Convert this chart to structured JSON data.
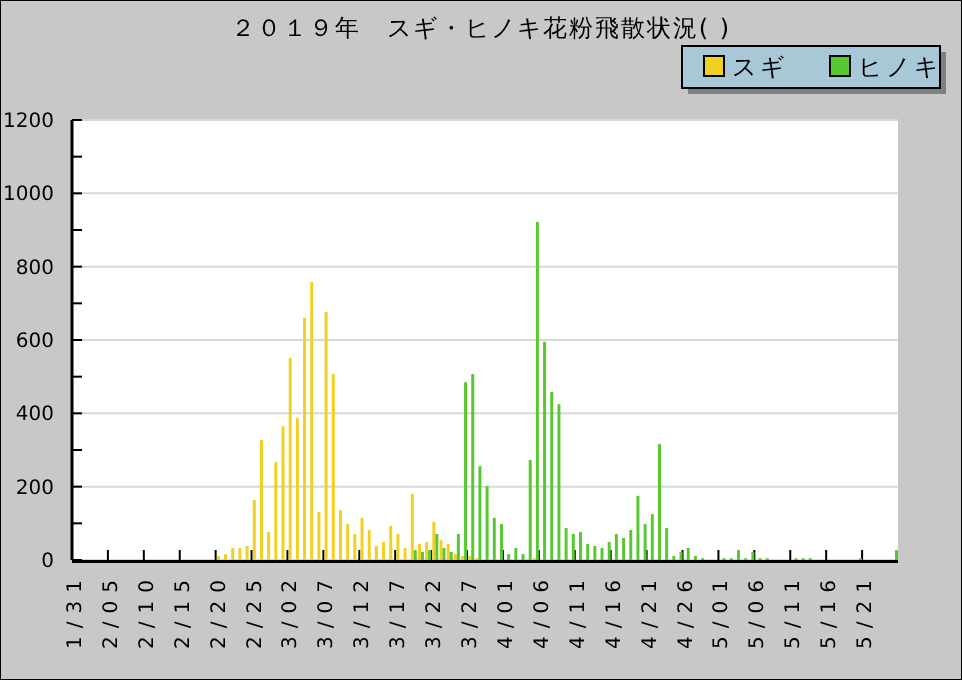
{
  "chart_data": {
    "type": "bar",
    "title": "２０１９年　スギ・ヒノキ花粉飛散状況( )",
    "categories": [
      "1/31",
      null,
      null,
      null,
      null,
      "2/05",
      null,
      null,
      null,
      null,
      "2/10",
      null,
      null,
      null,
      null,
      "2/15",
      null,
      null,
      null,
      null,
      "2/20",
      null,
      null,
      null,
      null,
      "2/25",
      null,
      null,
      null,
      null,
      "3/02",
      null,
      null,
      null,
      null,
      "3/07",
      null,
      null,
      null,
      null,
      "3/12",
      null,
      null,
      null,
      null,
      "3/17",
      null,
      null,
      null,
      null,
      "3/22",
      null,
      null,
      null,
      null,
      "3/27",
      null,
      null,
      null,
      null,
      "4/01",
      null,
      null,
      null,
      null,
      "4/06",
      null,
      null,
      null,
      null,
      "4/11",
      null,
      null,
      null,
      null,
      "4/16",
      null,
      null,
      null,
      null,
      "4/21",
      null,
      null,
      null,
      null,
      "4/26",
      null,
      null,
      null,
      null,
      "5/01",
      null,
      null,
      null,
      null,
      "5/06",
      null,
      null,
      null,
      null,
      "5/11",
      null,
      null,
      null,
      null,
      "5/16",
      null,
      null,
      null,
      null,
      "5/21",
      null,
      null,
      null,
      null
    ],
    "series": [
      {
        "name": "スギ",
        "color": "#f0d020",
        "values": [
          0,
          0,
          0,
          0,
          0,
          0,
          0,
          0,
          0,
          0,
          0,
          0,
          0,
          0,
          0,
          0,
          0,
          0,
          0,
          0,
          11,
          16,
          33,
          33,
          38,
          164,
          327,
          76,
          267,
          365,
          551,
          387,
          660,
          758,
          131,
          676,
          507,
          136,
          98,
          71,
          115,
          82,
          38,
          49,
          93,
          71,
          33,
          180,
          44,
          49,
          104,
          55,
          44,
          16,
          11,
          11,
          5,
          0,
          0,
          0,
          0,
          0,
          0,
          0,
          5,
          null,
          0,
          0,
          0,
          0,
          0,
          0,
          0,
          0,
          0,
          0,
          0,
          0,
          0,
          0,
          0,
          0,
          0,
          0,
          0,
          0,
          0,
          0,
          0,
          0,
          0,
          0,
          0,
          0,
          0,
          0,
          0,
          0,
          0,
          0,
          0,
          0,
          0,
          0,
          0,
          0,
          0,
          0,
          0,
          0,
          0,
          0,
          0,
          0,
          0
        ]
      },
      {
        "name": "ヒノキ",
        "color": "#58c830",
        "values": [
          0,
          0,
          0,
          0,
          0,
          0,
          0,
          0,
          0,
          0,
          0,
          0,
          0,
          0,
          0,
          0,
          0,
          0,
          0,
          0,
          0,
          0,
          0,
          0,
          0,
          0,
          0,
          0,
          0,
          0,
          0,
          0,
          0,
          0,
          0,
          0,
          0,
          0,
          0,
          0,
          0,
          0,
          0,
          0,
          0,
          0,
          0,
          27,
          22,
          27,
          71,
          33,
          22,
          71,
          485,
          507,
          256,
          202,
          115,
          98,
          16,
          33,
          16,
          273,
          922,
          595,
          458,
          425,
          87,
          71,
          76,
          44,
          38,
          33,
          49,
          71,
          60,
          82,
          175,
          98,
          125,
          316,
          87,
          11,
          22,
          33,
          11,
          5,
          0,
          0,
          5,
          5,
          27,
          5,
          22,
          5,
          5,
          0,
          0,
          0,
          5,
          5,
          5,
          0,
          0,
          0,
          0,
          0,
          0,
          5,
          0,
          0,
          0,
          0,
          27
        ]
      }
    ],
    "ylim": [
      0,
      1200
    ],
    "yticks": [
      0,
      {
        "value": 100,
        "label": null
      },
      200,
      {
        "value": 300,
        "label": null
      },
      400,
      {
        "value": 500,
        "label": null
      },
      600,
      {
        "value": 700,
        "label": null
      },
      800,
      {
        "value": 900,
        "label": null
      },
      1000,
      {
        "value": 1100,
        "label": null
      },
      1200
    ],
    "grid": "y",
    "legend": "top right"
  }
}
